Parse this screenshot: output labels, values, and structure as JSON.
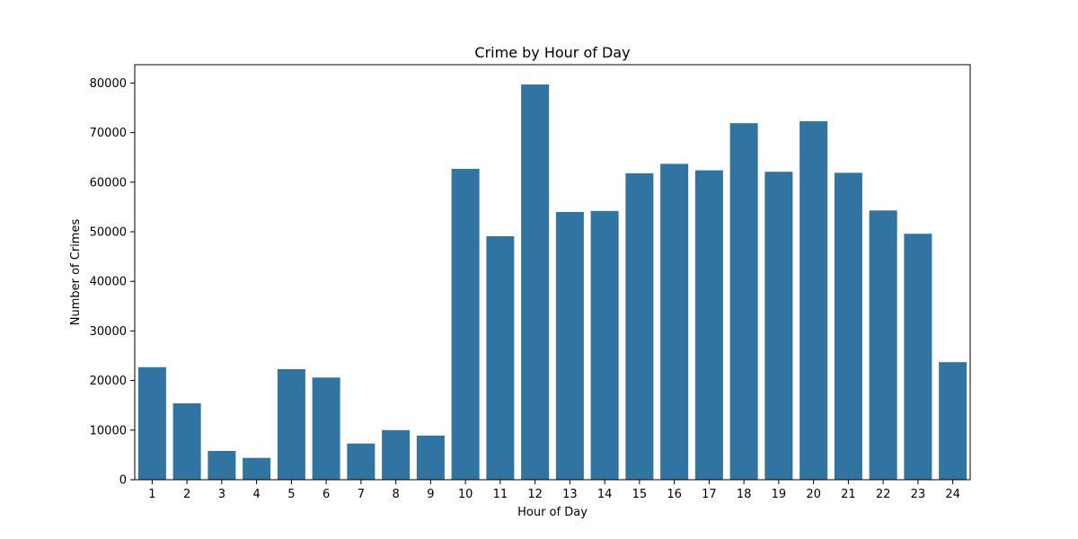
{
  "chart_data": {
    "type": "bar",
    "title": "Crime by Hour of Day",
    "xlabel": "Hour of Day",
    "ylabel": "Number of Crimes",
    "categories": [
      "1",
      "2",
      "3",
      "4",
      "5",
      "6",
      "7",
      "8",
      "9",
      "10",
      "11",
      "12",
      "13",
      "14",
      "15",
      "16",
      "17",
      "18",
      "19",
      "20",
      "21",
      "22",
      "23",
      "24"
    ],
    "values": [
      22700,
      15400,
      5800,
      4400,
      22300,
      20600,
      7300,
      10000,
      8900,
      62700,
      49100,
      79700,
      54000,
      54200,
      61800,
      63700,
      62400,
      71900,
      62100,
      72300,
      61900,
      54300,
      49600,
      23700
    ],
    "yticks": [
      0,
      10000,
      20000,
      30000,
      40000,
      50000,
      60000,
      70000,
      80000
    ],
    "ylim": [
      0,
      83700
    ],
    "grid": false,
    "bar_color": "#3274a1"
  }
}
